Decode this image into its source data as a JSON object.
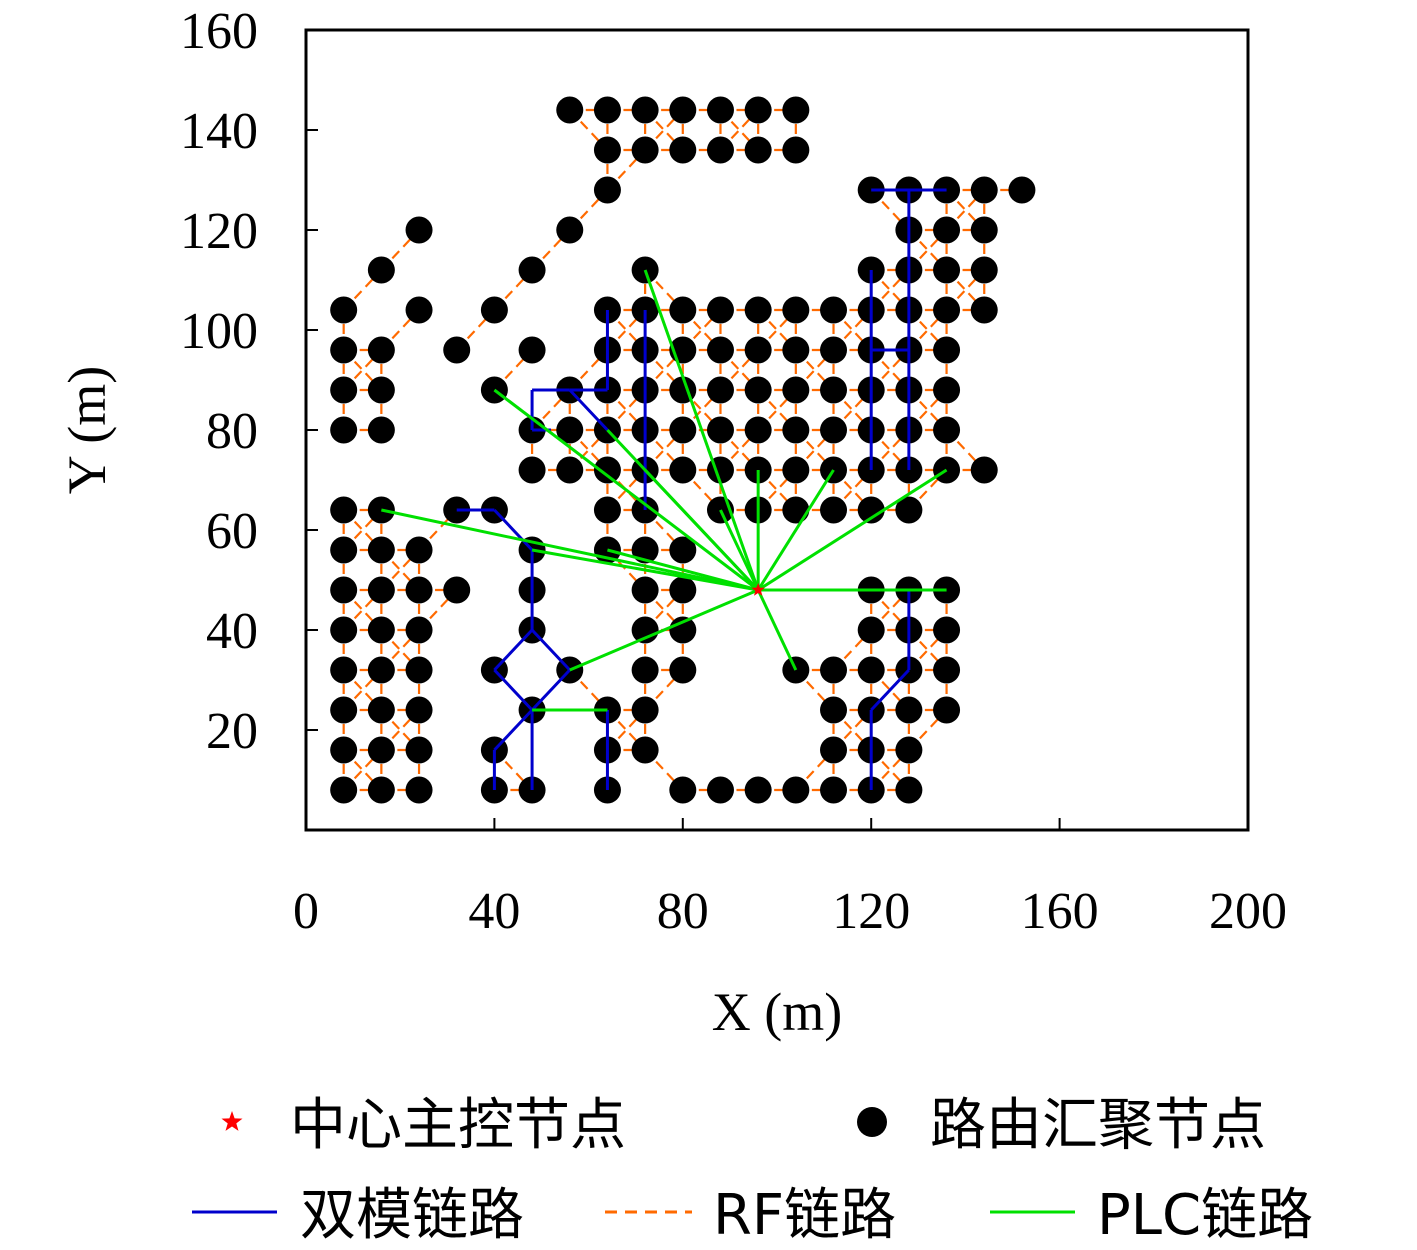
{
  "chart_data": {
    "type": "scatter",
    "xlabel": "X (m)",
    "ylabel": "Y (m)",
    "xlim": [
      0,
      200
    ],
    "ylim": [
      0,
      160
    ],
    "xticks": [
      0,
      40,
      80,
      120,
      160,
      200
    ],
    "yticks": [
      20,
      40,
      60,
      80,
      100,
      120,
      140,
      160
    ],
    "legend": {
      "placement": "bottom",
      "entries": [
        {
          "label": "中心主控节点",
          "marker": "star",
          "color": "#ff0000"
        },
        {
          "label": "路由汇聚节点",
          "marker": "dot",
          "color": "#000000"
        },
        {
          "label": "双模链路",
          "style": "solid",
          "color": "#0000cc"
        },
        {
          "label": "RF链路",
          "style": "dashed",
          "color": "#ff6a00"
        },
        {
          "label": "PLC链路",
          "style": "solid",
          "color": "#00e000"
        }
      ]
    },
    "center_node": {
      "x": 96,
      "y": 48
    },
    "router_nodes": [
      [
        56,
        144
      ],
      [
        64,
        144
      ],
      [
        72,
        144
      ],
      [
        80,
        144
      ],
      [
        88,
        144
      ],
      [
        96,
        144
      ],
      [
        104,
        144
      ],
      [
        64,
        136
      ],
      [
        72,
        136
      ],
      [
        80,
        136
      ],
      [
        88,
        136
      ],
      [
        96,
        136
      ],
      [
        104,
        136
      ],
      [
        64,
        128
      ],
      [
        56,
        120
      ],
      [
        48,
        112
      ],
      [
        64,
        104
      ],
      [
        24,
        120
      ],
      [
        16,
        112
      ],
      [
        8,
        104
      ],
      [
        24,
        104
      ],
      [
        40,
        104
      ],
      [
        32,
        96
      ],
      [
        48,
        96
      ],
      [
        40,
        88
      ],
      [
        8,
        96
      ],
      [
        16,
        96
      ],
      [
        8,
        88
      ],
      [
        16,
        88
      ],
      [
        8,
        80
      ],
      [
        16,
        80
      ],
      [
        120,
        128
      ],
      [
        128,
        128
      ],
      [
        136,
        128
      ],
      [
        144,
        128
      ],
      [
        152,
        128
      ],
      [
        128,
        120
      ],
      [
        136,
        120
      ],
      [
        144,
        120
      ],
      [
        120,
        112
      ],
      [
        128,
        112
      ],
      [
        136,
        112
      ],
      [
        144,
        112
      ],
      [
        128,
        104
      ],
      [
        136,
        104
      ],
      [
        144,
        104
      ],
      [
        72,
        112
      ],
      [
        72,
        104
      ],
      [
        80,
        104
      ],
      [
        88,
        104
      ],
      [
        96,
        104
      ],
      [
        104,
        104
      ],
      [
        112,
        104
      ],
      [
        120,
        104
      ],
      [
        64,
        96
      ],
      [
        72,
        96
      ],
      [
        80,
        96
      ],
      [
        88,
        96
      ],
      [
        96,
        96
      ],
      [
        104,
        96
      ],
      [
        112,
        96
      ],
      [
        120,
        96
      ],
      [
        128,
        96
      ],
      [
        136,
        96
      ],
      [
        56,
        88
      ],
      [
        64,
        88
      ],
      [
        72,
        88
      ],
      [
        80,
        88
      ],
      [
        88,
        88
      ],
      [
        96,
        88
      ],
      [
        104,
        88
      ],
      [
        112,
        88
      ],
      [
        120,
        88
      ],
      [
        128,
        88
      ],
      [
        136,
        88
      ],
      [
        48,
        80
      ],
      [
        56,
        80
      ],
      [
        64,
        80
      ],
      [
        72,
        80
      ],
      [
        80,
        80
      ],
      [
        88,
        80
      ],
      [
        96,
        80
      ],
      [
        104,
        80
      ],
      [
        112,
        80
      ],
      [
        120,
        80
      ],
      [
        128,
        80
      ],
      [
        136,
        80
      ],
      [
        48,
        72
      ],
      [
        56,
        72
      ],
      [
        64,
        72
      ],
      [
        72,
        72
      ],
      [
        80,
        72
      ],
      [
        88,
        72
      ],
      [
        96,
        72
      ],
      [
        104,
        72
      ],
      [
        112,
        72
      ],
      [
        120,
        72
      ],
      [
        128,
        72
      ],
      [
        136,
        72
      ],
      [
        144,
        72
      ],
      [
        64,
        64
      ],
      [
        72,
        64
      ],
      [
        88,
        64
      ],
      [
        96,
        64
      ],
      [
        104,
        64
      ],
      [
        112,
        64
      ],
      [
        120,
        64
      ],
      [
        128,
        64
      ],
      [
        64,
        56
      ],
      [
        72,
        56
      ],
      [
        80,
        56
      ],
      [
        72,
        48
      ],
      [
        80,
        48
      ],
      [
        72,
        40
      ],
      [
        80,
        40
      ],
      [
        72,
        32
      ],
      [
        80,
        32
      ],
      [
        8,
        64
      ],
      [
        16,
        64
      ],
      [
        32,
        64
      ],
      [
        40,
        64
      ],
      [
        8,
        56
      ],
      [
        16,
        56
      ],
      [
        24,
        56
      ],
      [
        48,
        56
      ],
      [
        8,
        48
      ],
      [
        16,
        48
      ],
      [
        24,
        48
      ],
      [
        32,
        48
      ],
      [
        48,
        48
      ],
      [
        8,
        40
      ],
      [
        16,
        40
      ],
      [
        24,
        40
      ],
      [
        48,
        40
      ],
      [
        8,
        32
      ],
      [
        16,
        32
      ],
      [
        24,
        32
      ],
      [
        40,
        32
      ],
      [
        56,
        32
      ],
      [
        8,
        24
      ],
      [
        16,
        24
      ],
      [
        24,
        24
      ],
      [
        48,
        24
      ],
      [
        64,
        24
      ],
      [
        72,
        24
      ],
      [
        8,
        16
      ],
      [
        16,
        16
      ],
      [
        24,
        16
      ],
      [
        40,
        16
      ],
      [
        64,
        16
      ],
      [
        72,
        16
      ],
      [
        8,
        8
      ],
      [
        16,
        8
      ],
      [
        24,
        8
      ],
      [
        40,
        8
      ],
      [
        48,
        8
      ],
      [
        64,
        8
      ],
      [
        80,
        8
      ],
      [
        88,
        8
      ],
      [
        96,
        8
      ],
      [
        104,
        8
      ],
      [
        112,
        8
      ],
      [
        120,
        8
      ],
      [
        128,
        8
      ],
      [
        104,
        32
      ],
      [
        112,
        32
      ],
      [
        112,
        24
      ],
      [
        112,
        16
      ],
      [
        120,
        16
      ],
      [
        128,
        16
      ],
      [
        120,
        48
      ],
      [
        128,
        48
      ],
      [
        136,
        48
      ],
      [
        120,
        40
      ],
      [
        128,
        40
      ],
      [
        136,
        40
      ],
      [
        120,
        32
      ],
      [
        128,
        32
      ],
      [
        136,
        32
      ],
      [
        120,
        24
      ],
      [
        128,
        24
      ],
      [
        136,
        24
      ]
    ],
    "dual_mode_links": [
      [
        [
          120,
          128
        ],
        [
          136,
          128
        ]
      ],
      [
        [
          128,
          128
        ],
        [
          128,
          72
        ]
      ],
      [
        [
          120,
          112
        ],
        [
          120,
          72
        ]
      ],
      [
        [
          120,
          96
        ],
        [
          128,
          96
        ]
      ],
      [
        [
          64,
          88
        ],
        [
          64,
          104
        ]
      ],
      [
        [
          56,
          88
        ],
        [
          64,
          88
        ]
      ],
      [
        [
          48,
          88
        ],
        [
          56,
          88
        ]
      ],
      [
        [
          48,
          88
        ],
        [
          48,
          80
        ]
      ],
      [
        [
          48,
          80
        ],
        [
          52,
          80
        ]
      ],
      [
        [
          56,
          88
        ],
        [
          64,
          80
        ]
      ],
      [
        [
          72,
          104
        ],
        [
          72,
          64
        ]
      ],
      [
        [
          32,
          64
        ],
        [
          40,
          64
        ]
      ],
      [
        [
          40,
          64
        ],
        [
          48,
          56
        ]
      ],
      [
        [
          48,
          56
        ],
        [
          48,
          40
        ]
      ],
      [
        [
          48,
          40
        ],
        [
          40,
          32
        ]
      ],
      [
        [
          48,
          40
        ],
        [
          56,
          32
        ]
      ],
      [
        [
          40,
          32
        ],
        [
          48,
          24
        ]
      ],
      [
        [
          56,
          32
        ],
        [
          48,
          24
        ]
      ],
      [
        [
          48,
          24
        ],
        [
          40,
          16
        ]
      ],
      [
        [
          40,
          16
        ],
        [
          40,
          8
        ]
      ],
      [
        [
          48,
          24
        ],
        [
          48,
          8
        ]
      ],
      [
        [
          64,
          24
        ],
        [
          64,
          8
        ]
      ],
      [
        [
          128,
          48
        ],
        [
          128,
          32
        ]
      ],
      [
        [
          128,
          32
        ],
        [
          120,
          24
        ]
      ],
      [
        [
          120,
          24
        ],
        [
          120,
          8
        ]
      ]
    ],
    "plc_links": [
      [
        [
          96,
          48
        ],
        [
          72,
          112
        ]
      ],
      [
        [
          96,
          48
        ],
        [
          40,
          88
        ]
      ],
      [
        [
          96,
          48
        ],
        [
          64,
          80
        ]
      ],
      [
        [
          96,
          48
        ],
        [
          72,
          72
        ]
      ],
      [
        [
          96,
          48
        ],
        [
          96,
          72
        ]
      ],
      [
        [
          96,
          48
        ],
        [
          88,
          64
        ]
      ],
      [
        [
          96,
          48
        ],
        [
          112,
          72
        ]
      ],
      [
        [
          96,
          48
        ],
        [
          136,
          72
        ]
      ],
      [
        [
          96,
          48
        ],
        [
          136,
          48
        ]
      ],
      [
        [
          96,
          48
        ],
        [
          104,
          32
        ]
      ],
      [
        [
          96,
          48
        ],
        [
          56,
          32
        ]
      ],
      [
        [
          96,
          48
        ],
        [
          16,
          64
        ]
      ],
      [
        [
          96,
          48
        ],
        [
          48,
          56
        ]
      ],
      [
        [
          96,
          48
        ],
        [
          64,
          56
        ]
      ],
      [
        [
          48,
          24
        ],
        [
          64,
          24
        ]
      ]
    ]
  }
}
